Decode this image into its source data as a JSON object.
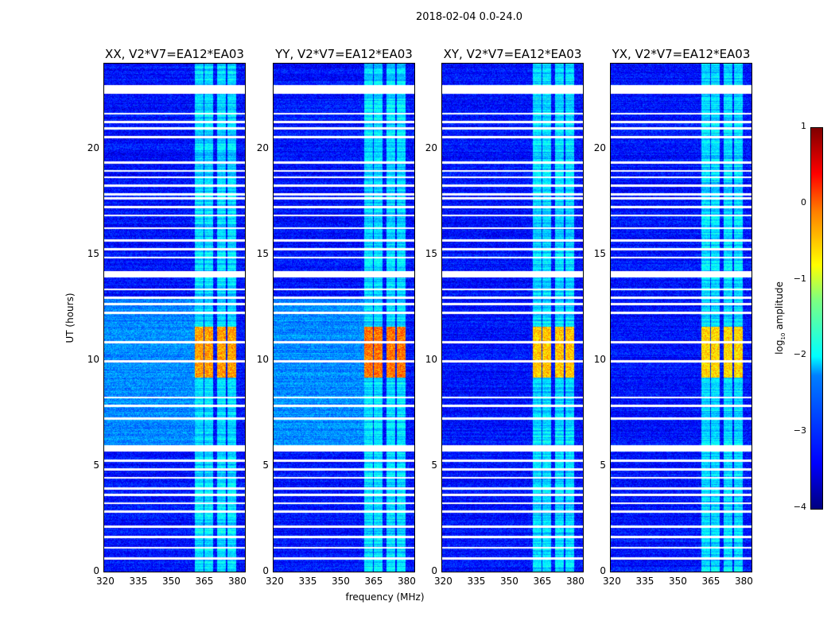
{
  "suptitle": "2018-02-04 0.0-24.0",
  "chart_data": {
    "type": "heatmap",
    "title": "2018-02-04 0.0-24.0",
    "xlabel": "frequency (MHz)",
    "ylabel": "UT (hours)",
    "xlim": [
      320,
      384
    ],
    "ylim": [
      0,
      24
    ],
    "xticks": [
      "320",
      "335",
      "350",
      "365",
      "380"
    ],
    "yticks": [
      "0",
      "5",
      "10",
      "15",
      "20"
    ],
    "colormap": "jet",
    "colorbar": {
      "label_main": "log",
      "label_sub": "10",
      "label_rest": " amplitude",
      "range": [
        -4,
        1
      ],
      "ticks": [
        "1",
        "0",
        "−1",
        "−2",
        "−3",
        "−4"
      ]
    },
    "panels": [
      {
        "title": "XX, V2*V7=EA12*EA03",
        "peak": -0.2
      },
      {
        "title": "YY, V2*V7=EA12*EA03",
        "peak": 0.0
      },
      {
        "title": "XY, V2*V7=EA12*EA03",
        "peak": -0.4
      },
      {
        "title": "YX, V2*V7=EA12*EA03",
        "peak": -0.5
      }
    ],
    "background_level": -3.3,
    "rfi_bands_mhz": [
      [
        361,
        365
      ],
      [
        365.5,
        369.5
      ],
      [
        371,
        375
      ],
      [
        376,
        380
      ]
    ],
    "strong_interval_hours": [
      9.2,
      11.6
    ],
    "flagged_hours": [
      [
        22.6,
        23.0
      ],
      [
        21.6,
        21.7
      ],
      [
        21.2,
        21.3
      ],
      [
        20.9,
        21.0
      ],
      [
        20.5,
        20.6
      ],
      [
        19.3,
        19.4
      ],
      [
        18.9,
        19.0
      ],
      [
        18.6,
        18.7
      ],
      [
        18.2,
        18.3
      ],
      [
        17.8,
        17.9
      ],
      [
        17.6,
        17.7
      ],
      [
        17.2,
        17.3
      ],
      [
        16.8,
        16.9
      ],
      [
        16.2,
        16.3
      ],
      [
        15.6,
        15.7
      ],
      [
        15.2,
        15.3
      ],
      [
        14.8,
        14.9
      ],
      [
        13.9,
        14.2
      ],
      [
        13.3,
        13.4
      ],
      [
        12.9,
        13.0
      ],
      [
        12.6,
        12.7
      ],
      [
        12.2,
        12.3
      ],
      [
        10.8,
        10.9
      ],
      [
        9.9,
        10.0
      ],
      [
        8.2,
        8.3
      ],
      [
        7.8,
        7.9
      ],
      [
        7.2,
        7.3
      ],
      [
        5.7,
        6.0
      ],
      [
        5.2,
        5.3
      ],
      [
        4.8,
        4.9
      ],
      [
        4.4,
        4.5
      ],
      [
        3.9,
        4.0
      ],
      [
        3.6,
        3.7
      ],
      [
        3.2,
        3.3
      ],
      [
        2.8,
        2.9
      ],
      [
        2.1,
        2.2
      ],
      [
        1.6,
        1.7
      ],
      [
        1.1,
        1.2
      ],
      [
        0.6,
        0.7
      ]
    ]
  }
}
